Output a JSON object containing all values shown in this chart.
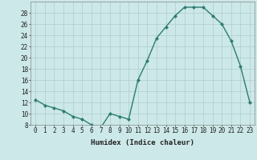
{
  "x": [
    0,
    1,
    2,
    3,
    4,
    5,
    6,
    7,
    8,
    9,
    10,
    11,
    12,
    13,
    14,
    15,
    16,
    17,
    18,
    19,
    20,
    21,
    22,
    23
  ],
  "y": [
    12.5,
    11.5,
    11.0,
    10.5,
    9.5,
    9.0,
    8.0,
    7.5,
    10.0,
    9.5,
    9.0,
    16.0,
    19.5,
    23.5,
    25.5,
    27.5,
    29.0,
    29.0,
    29.0,
    27.5,
    26.0,
    23.0,
    18.5,
    12.0
  ],
  "line_color": "#2e7d6e",
  "marker": "D",
  "marker_size": 2.0,
  "bg_color": "#cce8e8",
  "grid_color": "#b0cccc",
  "xlabel": "Humidex (Indice chaleur)",
  "ylim": [
    8,
    30
  ],
  "xlim": [
    -0.5,
    23.5
  ],
  "yticks": [
    8,
    10,
    12,
    14,
    16,
    18,
    20,
    22,
    24,
    26,
    28
  ],
  "xticks": [
    0,
    1,
    2,
    3,
    4,
    5,
    6,
    7,
    8,
    9,
    10,
    11,
    12,
    13,
    14,
    15,
    16,
    17,
    18,
    19,
    20,
    21,
    22,
    23
  ],
  "tick_fontsize": 5.5,
  "xlabel_fontsize": 6.5,
  "line_width": 1.0
}
